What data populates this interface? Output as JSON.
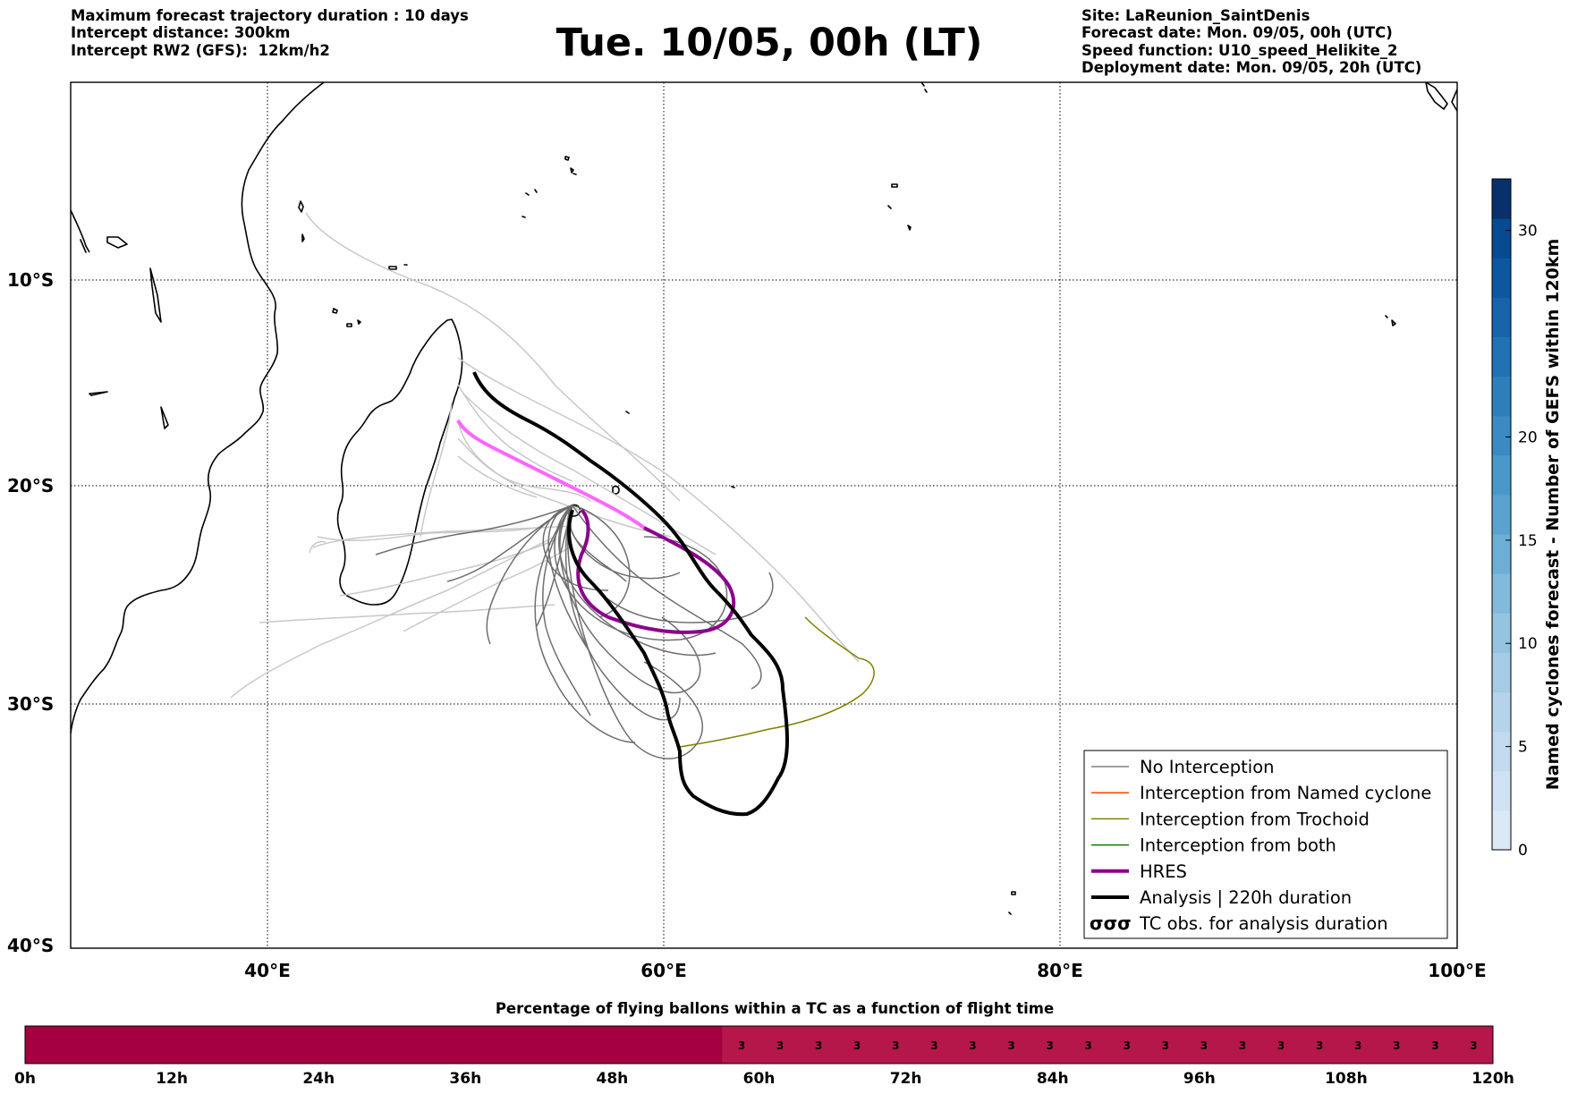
{
  "header": {
    "left_lines": [
      "Maximum forecast trajectory duration : 10 days",
      "Intercept distance: 300km",
      "Intercept RW2 (GFS):  12km/h2"
    ],
    "title": "Tue. 10/05, 00h (LT)",
    "right_lines": [
      "Site: LaReunion_SaintDenis",
      "Forecast date: Mon. 09/05, 00h (UTC)",
      "Speed function: U10_speed_Helikite_2",
      "Deployment date: Mon. 09/05, 20h (UTC)"
    ]
  },
  "map": {
    "lon_range": [
      30,
      100
    ],
    "lat_range": [
      -40,
      -1
    ],
    "lat_labels": [
      "10°S",
      "20°S",
      "30°S",
      "40°S"
    ],
    "lon_labels": [
      "40°E",
      "60°E",
      "80°E",
      "100°E"
    ],
    "legend": {
      "items": [
        {
          "label": "No Interception",
          "color": "#808080",
          "icon": "thin-line"
        },
        {
          "label": "Interception from Named cyclone",
          "color": "#ff4500",
          "icon": "thin-line"
        },
        {
          "label": "Interception from Trochoid",
          "color": "#808000",
          "icon": "thin-line"
        },
        {
          "label": "Interception from both",
          "color": "#008000",
          "icon": "thin-line"
        },
        {
          "label": "HRES",
          "color": "#8b008b",
          "icon": "thick-line"
        },
        {
          "label": "Analysis | 220h duration",
          "color": "#000000",
          "icon": "thick-line"
        },
        {
          "label": "TC obs. for analysis duration",
          "color": "#000000",
          "icon": "cyclone-symbols-icon"
        }
      ],
      "cyclone_glyphs": "σσσ"
    }
  },
  "colorbar": {
    "label": "Named cyclones forecast - Number of GEFS within 120km",
    "ticks": [
      "0",
      "5",
      "10",
      "15",
      "20",
      "30"
    ],
    "colors": [
      "#dbe9f6",
      "#cfe1f2",
      "#c3daee",
      "#b5d3ea",
      "#a6cbe4",
      "#94c4df",
      "#82badb",
      "#6daed5",
      "#5ba3cf",
      "#4a98c9",
      "#3b8bc2",
      "#2f7ebc",
      "#2171b5",
      "#1764ab",
      "#0d57a1",
      "#084a91",
      "#08306b"
    ]
  },
  "timeline": {
    "title": "Percentage of flying ballons within a TC as a function of flight time",
    "labels": [
      "0h",
      "12h",
      "24h",
      "36h",
      "48h",
      "60h",
      "72h",
      "84h",
      "96h",
      "108h",
      "120h"
    ],
    "cell_value": "3",
    "cell_count": 20,
    "dark_color": "#a50040",
    "light_color": "#b5174b"
  }
}
